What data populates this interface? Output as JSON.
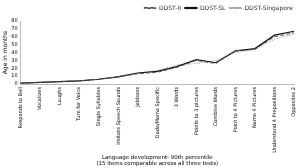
{
  "chart_data": {
    "type": "line",
    "categories": [
      "Responds to Bell",
      "Vocalizes",
      "Laughs",
      "Turn for Voice",
      "Single Syllables",
      "Imitate Speech Sounds",
      "Jabbons",
      "Dada/Mama Specific",
      "3 Words",
      "Points to 3 pictures",
      "Combine Words",
      "Point to 4 Pictures",
      "Name 4 Pictures",
      "Understand 4 Prepositions",
      "Opposites 2"
    ],
    "series": [
      {
        "name": "DDST-II",
        "color": "#555555",
        "line_style": "dashed",
        "values": [
          1,
          2,
          3,
          4,
          6,
          9,
          13,
          15,
          21,
          30,
          26,
          42,
          44,
          60,
          65
        ]
      },
      {
        "name": "DDST-SL",
        "color": "#111111",
        "line_style": "solid",
        "values": [
          1,
          2,
          3,
          4,
          6,
          9,
          14,
          16,
          22,
          31,
          27,
          42,
          45,
          62,
          67
        ]
      },
      {
        "name": "DDST-Singapore",
        "color": "#888888",
        "line_style": "dotted",
        "values": [
          1,
          2,
          3,
          4,
          6,
          10,
          14,
          17,
          24,
          26,
          30,
          40,
          44,
          57,
          63
        ]
      }
    ],
    "ylabel": "Age in months",
    "xlabel": [
      "Language development- 90th percentile",
      "(15 items comparable across all three tests)"
    ],
    "ylim": [
      0,
      80
    ],
    "yticks": [
      0,
      10,
      20,
      30,
      40,
      50,
      60,
      70,
      80
    ],
    "grid": false,
    "legend": "upper right"
  }
}
